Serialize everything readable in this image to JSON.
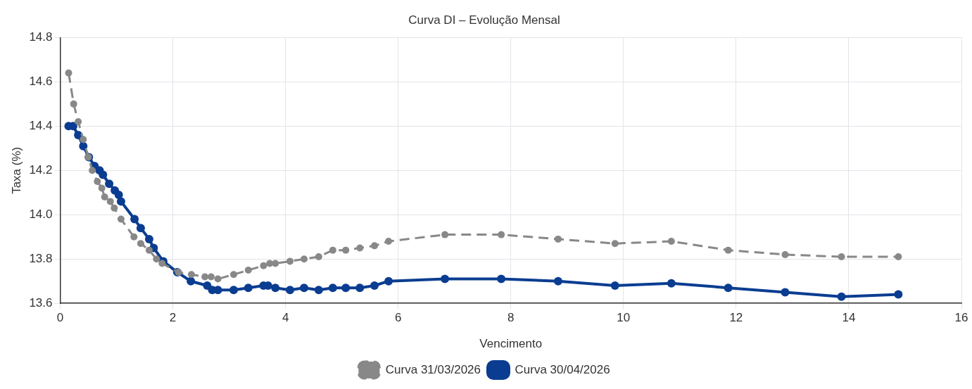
{
  "chart_data": {
    "type": "line",
    "title": "Curva DI – Evolução Mensal",
    "xlabel": "Vencimento",
    "ylabel": "Taxa (%)",
    "xlim": [
      0,
      16
    ],
    "xticks": [
      0,
      2,
      4,
      6,
      8,
      10,
      12,
      14,
      16
    ],
    "ylim": [
      13.6,
      14.8
    ],
    "yticks": [
      {
        "value": 13.6,
        "label": "13.6"
      },
      {
        "value": 13.8,
        "label": "13.8"
      },
      {
        "value": 14.0,
        "label": "14.0"
      },
      {
        "value": 14.2,
        "label": "14.2"
      },
      {
        "value": 14.4,
        "label": "14.4"
      },
      {
        "value": 14.6,
        "label": "14.6"
      },
      {
        "value": 14.8,
        "label": "14.8"
      }
    ],
    "grid": true,
    "legend": "bottom",
    "marker": "circle",
    "series": [
      {
        "name": "Curva 31/03/2026",
        "color": "#888888",
        "line_style": "dashed",
        "x": [
          0.15,
          0.24,
          0.32,
          0.41,
          0.5,
          0.57,
          0.66,
          0.74,
          0.79,
          0.89,
          0.96,
          1.08,
          1.31,
          1.43,
          1.58,
          1.71,
          1.81,
          2.1,
          2.33,
          2.57,
          2.68,
          2.8,
          3.08,
          3.34,
          3.61,
          3.72,
          3.82,
          4.08,
          4.33,
          4.59,
          4.84,
          5.07,
          5.32,
          5.58,
          5.83,
          6.83,
          7.83,
          8.84,
          9.85,
          10.85,
          11.86,
          12.87,
          13.87,
          14.88
        ],
        "values": [
          14.64,
          14.5,
          14.42,
          14.34,
          14.26,
          14.2,
          14.15,
          14.12,
          14.08,
          14.06,
          14.03,
          13.98,
          13.9,
          13.87,
          13.84,
          13.8,
          13.78,
          13.74,
          13.73,
          13.72,
          13.72,
          13.71,
          13.73,
          13.75,
          13.77,
          13.78,
          13.78,
          13.79,
          13.8,
          13.81,
          13.84,
          13.84,
          13.85,
          13.86,
          13.88,
          13.91,
          13.91,
          13.89,
          13.87,
          13.88,
          13.84,
          13.82,
          13.81,
          13.81
        ]
      },
      {
        "name": "Curva 30/04/2026",
        "color": "#0a3d91",
        "line_style": "solid",
        "x": [
          0.15,
          0.23,
          0.32,
          0.41,
          0.51,
          0.61,
          0.7,
          0.76,
          0.87,
          0.97,
          1.04,
          1.08,
          1.32,
          1.43,
          1.58,
          1.66,
          1.83,
          2.08,
          2.32,
          2.61,
          2.7,
          2.8,
          3.08,
          3.34,
          3.61,
          3.69,
          3.82,
          4.08,
          4.33,
          4.59,
          4.84,
          5.07,
          5.32,
          5.58,
          5.83,
          6.83,
          7.83,
          8.84,
          9.85,
          10.85,
          11.86,
          12.87,
          13.87,
          14.88
        ],
        "values": [
          14.4,
          14.4,
          14.36,
          14.31,
          14.26,
          14.22,
          14.2,
          14.18,
          14.14,
          14.11,
          14.09,
          14.06,
          13.98,
          13.94,
          13.89,
          13.85,
          13.79,
          13.74,
          13.7,
          13.68,
          13.66,
          13.66,
          13.66,
          13.67,
          13.68,
          13.68,
          13.67,
          13.66,
          13.67,
          13.66,
          13.67,
          13.67,
          13.67,
          13.68,
          13.7,
          13.71,
          13.71,
          13.7,
          13.68,
          13.69,
          13.67,
          13.65,
          13.63,
          13.64
        ]
      }
    ]
  }
}
